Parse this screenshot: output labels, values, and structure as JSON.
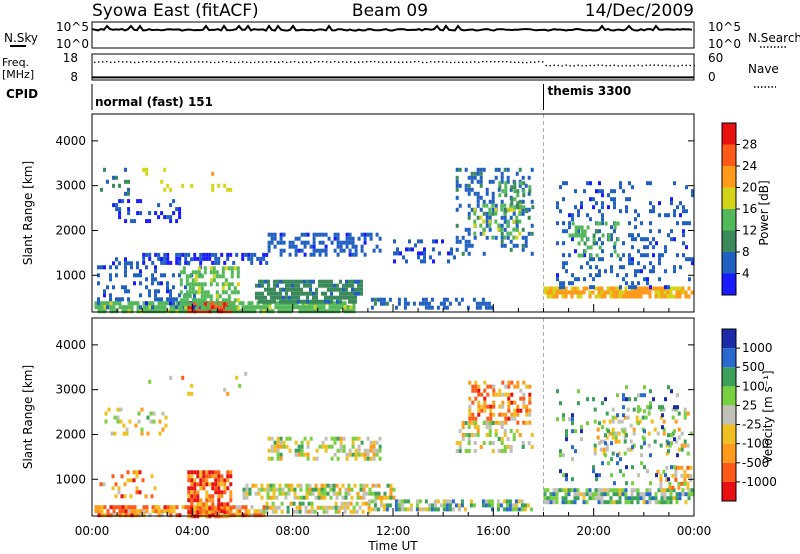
{
  "header": {
    "station": "Syowa East (fitACF)",
    "beam": "Beam 09",
    "date": "14/Dec/2009"
  },
  "colors": {
    "power": [
      "#1a1aff",
      "#2060c0",
      "#3a8a5a",
      "#52b85a",
      "#d4d41a",
      "#ff9a1a",
      "#ff5a1a",
      "#e81010"
    ],
    "velocity": [
      "#e81010",
      "#ff5a1a",
      "#ff9a1a",
      "#f0c020",
      "#c0c0b8",
      "#78d040",
      "#3aa05a",
      "#2a6ad0",
      "#1a2aa8"
    ],
    "cpid_divider": "#909090"
  },
  "chart_data": [
    {
      "type": "line",
      "name": "nsky-nsearch",
      "ylabel_left": "N.Sky",
      "ylabel_right": "N.Search",
      "ticks_left": [
        "10^5",
        "10^0"
      ],
      "ticks_right": [
        "10^5",
        "10^0"
      ],
      "note": "N.Sky solid line near top of panel"
    },
    {
      "type": "line",
      "name": "freq-nave",
      "ylabel_left": "Freq. [MHz]",
      "ylabel_right": "Nave",
      "ticks_left": [
        "18",
        "8"
      ],
      "ticks_right": [
        "60",
        "0"
      ],
      "ylim_left": [
        8,
        18
      ],
      "ylim_right": [
        0,
        60
      ],
      "freq_mhz": 9.0,
      "nave_segments": [
        {
          "x0": 0.0,
          "x1": 18.0,
          "nave": 43
        },
        {
          "x0": 18.0,
          "x1": 24.0,
          "nave": 35
        }
      ]
    },
    {
      "type": "table",
      "name": "cpid",
      "label": "CPID",
      "segments": [
        {
          "start_hour": 0,
          "text": "normal (fast) 151"
        },
        {
          "start_hour": 18,
          "text": "themis 3300"
        }
      ]
    },
    {
      "type": "heatmap",
      "name": "power",
      "ylabel": "Slant Range [km]",
      "colorbar_label": "Power [dB]",
      "yticks": [
        1000,
        2000,
        3000,
        4000
      ],
      "ylim": [
        180,
        4600
      ],
      "xlim": [
        0,
        24
      ],
      "colorbar_ticks": [
        4,
        8,
        12,
        16,
        20,
        24,
        28
      ],
      "colorbar_range": [
        0,
        32
      ],
      "bands": [
        {
          "x0": 0.1,
          "x1": 10.5,
          "r0": 220,
          "r1": 420,
          "v": 14,
          "d": 0.85
        },
        {
          "x0": 3.8,
          "x1": 5.5,
          "r0": 180,
          "r1": 420,
          "v": 27,
          "d": 0.9
        },
        {
          "x0": 0.2,
          "x1": 4.3,
          "r0": 300,
          "r1": 1400,
          "v": 5,
          "d": 0.25
        },
        {
          "x0": 3.5,
          "x1": 5.8,
          "r0": 300,
          "r1": 1200,
          "v": 14,
          "d": 0.55
        },
        {
          "x0": 6.5,
          "x1": 10.7,
          "r0": 450,
          "r1": 900,
          "v": 9,
          "d": 0.75
        },
        {
          "x0": 2.0,
          "x1": 7.0,
          "r0": 1250,
          "r1": 1500,
          "v": 4,
          "d": 0.5
        },
        {
          "x0": 0.8,
          "x1": 3.5,
          "r0": 2200,
          "r1": 2700,
          "v": 3,
          "d": 0.25
        },
        {
          "x0": 7.0,
          "x1": 11.5,
          "r0": 1500,
          "r1": 1950,
          "v": 5,
          "d": 0.45
        },
        {
          "x0": 12.0,
          "x1": 14.5,
          "r0": 1300,
          "r1": 1800,
          "v": 4,
          "d": 0.3
        },
        {
          "x0": 11.0,
          "x1": 16.0,
          "r0": 250,
          "r1": 500,
          "v": 6,
          "d": 0.45
        },
        {
          "x0": 14.5,
          "x1": 17.5,
          "r0": 1500,
          "r1": 3400,
          "v": 6,
          "d": 0.3
        },
        {
          "x0": 15.2,
          "x1": 17.0,
          "r0": 1800,
          "r1": 2600,
          "v": 15,
          "d": 0.4
        },
        {
          "x0": 16.2,
          "x1": 17.6,
          "r0": 2400,
          "r1": 3100,
          "v": 11,
          "d": 0.35
        },
        {
          "x0": 18.0,
          "x1": 23.9,
          "r0": 500,
          "r1": 750,
          "v": 20,
          "d": 0.8
        },
        {
          "x0": 18.5,
          "x1": 23.9,
          "r0": 700,
          "r1": 3100,
          "v": 5,
          "d": 0.18
        },
        {
          "x0": 19.0,
          "x1": 21.0,
          "r0": 1400,
          "r1": 2200,
          "v": 13,
          "d": 0.3
        },
        {
          "x0": 0.2,
          "x1": 1.5,
          "r0": 2700,
          "r1": 3400,
          "v": 8,
          "d": 0.12
        },
        {
          "x0": 2.0,
          "x1": 6.5,
          "r0": 2900,
          "r1": 3400,
          "v": 18,
          "d": 0.08
        }
      ]
    },
    {
      "type": "heatmap",
      "name": "velocity",
      "ylabel": "Slant Range [km]",
      "xlabel": "Time UT",
      "colorbar_label": "Velocity [m s⁻¹]",
      "yticks": [
        1000,
        2000,
        3000,
        4000
      ],
      "ylim": [
        180,
        4600
      ],
      "xlim": [
        0,
        24
      ],
      "xticks": [
        "00:00",
        "04:00",
        "08:00",
        "12:00",
        "16:00",
        "20:00",
        "00:00"
      ],
      "colorbar_ticks": [
        "1000",
        "500",
        "100",
        "25",
        "-25",
        "-100",
        "-500",
        "-1000"
      ],
      "bands": [
        {
          "x0": 0.1,
          "x1": 6.8,
          "r0": 200,
          "r1": 420,
          "v": 2,
          "d": 0.85
        },
        {
          "x0": 3.8,
          "x1": 5.5,
          "r0": 180,
          "r1": 1200,
          "v": 1,
          "d": 0.7
        },
        {
          "x0": 6.8,
          "x1": 11.0,
          "r0": 250,
          "r1": 500,
          "v": 4,
          "d": 0.55
        },
        {
          "x0": 6.0,
          "x1": 12.0,
          "r0": 550,
          "r1": 900,
          "v": 4,
          "d": 0.65
        },
        {
          "x0": 11.0,
          "x1": 17.5,
          "r0": 300,
          "r1": 550,
          "v": 5,
          "d": 0.6
        },
        {
          "x0": 7.0,
          "x1": 11.5,
          "r0": 1500,
          "r1": 1950,
          "v": 4,
          "d": 0.4
        },
        {
          "x0": 0.5,
          "x1": 3.0,
          "r0": 2000,
          "r1": 2600,
          "v": 4,
          "d": 0.2
        },
        {
          "x0": 15.0,
          "x1": 17.5,
          "r0": 2300,
          "r1": 3200,
          "v": 2,
          "d": 0.45
        },
        {
          "x0": 14.5,
          "x1": 17.5,
          "r0": 1600,
          "r1": 2300,
          "v": 4,
          "d": 0.35
        },
        {
          "x0": 18.0,
          "x1": 23.9,
          "r0": 500,
          "r1": 800,
          "v": 5,
          "d": 0.75
        },
        {
          "x0": 20.0,
          "x1": 23.9,
          "r0": 1600,
          "r1": 2600,
          "v": 4,
          "d": 0.25
        },
        {
          "x0": 22.5,
          "x1": 23.9,
          "r0": 800,
          "r1": 1300,
          "v": 3,
          "d": 0.4
        },
        {
          "x0": 18.5,
          "x1": 23.5,
          "r0": 900,
          "r1": 3100,
          "v": 6,
          "d": 0.1
        },
        {
          "x0": 0.3,
          "x1": 2.5,
          "r0": 600,
          "r1": 1200,
          "v": 2,
          "d": 0.2
        },
        {
          "x0": 2.0,
          "x1": 6.5,
          "r0": 2900,
          "r1": 3400,
          "v": 3,
          "d": 0.08
        }
      ]
    }
  ]
}
